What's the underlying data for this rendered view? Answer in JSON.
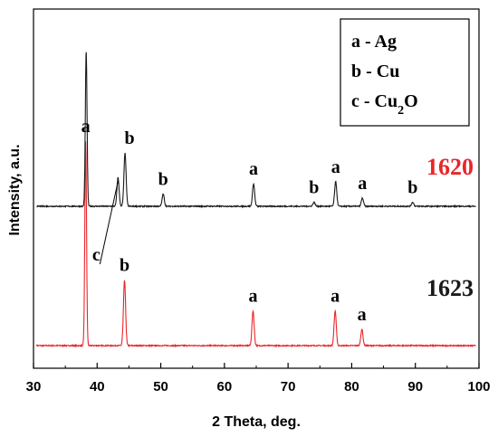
{
  "chart_data": {
    "type": "line",
    "title": "",
    "xlabel": "2 Theta, deg.",
    "ylabel": "Intensity, a.u.",
    "xlim": [
      30,
      100
    ],
    "x_ticks": [
      "30",
      "40",
      "50",
      "60",
      "70",
      "80",
      "90",
      "100"
    ],
    "grid": false,
    "legend": {
      "position": "top-right",
      "entries": [
        {
          "key": "a",
          "sep": " - ",
          "text": "Ag"
        },
        {
          "key": "b",
          "sep": " - ",
          "text": "Cu"
        },
        {
          "key": "c",
          "sep": " - ",
          "text": "Cu",
          "subscript": "2",
          "suffix": "O"
        }
      ]
    },
    "series": [
      {
        "name": "1620",
        "color": "#e8262b",
        "baseline": 10,
        "peaks": [
          {
            "x": 38.2,
            "height": 100,
            "label": "a"
          },
          {
            "x": 44.3,
            "height": 32,
            "label": "b"
          },
          {
            "x": 64.5,
            "height": 17,
            "label": "a"
          },
          {
            "x": 77.4,
            "height": 17,
            "label": "a"
          },
          {
            "x": 81.6,
            "height": 8,
            "label": "a"
          }
        ]
      },
      {
        "name": "1623",
        "color": "#1a1a1a",
        "baseline": 0,
        "peaks": [
          {
            "x": 38.2,
            "height": 76,
            "label": ""
          },
          {
            "x": 43.2,
            "height": 14,
            "label": "c"
          },
          {
            "x": 44.3,
            "height": 26,
            "label": "b"
          },
          {
            "x": 50.3,
            "height": 6,
            "label": "b"
          },
          {
            "x": 64.5,
            "height": 11,
            "label": "a"
          },
          {
            "x": 74.0,
            "height": 2,
            "label": "b"
          },
          {
            "x": 77.4,
            "height": 12,
            "label": "a"
          },
          {
            "x": 81.6,
            "height": 4,
            "label": "a"
          },
          {
            "x": 89.5,
            "height": 2,
            "label": "b"
          }
        ]
      }
    ]
  }
}
